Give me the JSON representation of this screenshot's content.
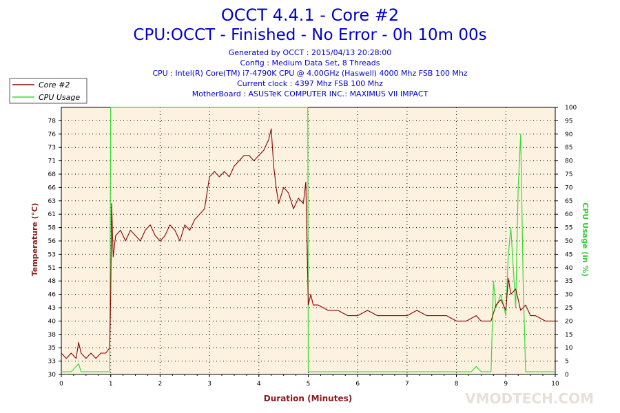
{
  "header": {
    "title": "OCCT 4.4.1 - Core #2",
    "subtitle": "CPU:OCCT - Finished - No Error - 0h 10m 00s",
    "info_lines": [
      "Generated by OCCT : 2015/04/13 20:28:00",
      "Config : Medium Data Set, 8 Threads",
      "CPU : Intel(R) Core(TM) i7-4790K CPU @ 4.00GHz (Haswell) 4000 Mhz FSB 100 Mhz",
      "Current clock : 4397 Mhz FSB 100 Mhz",
      "MotherBoard : ASUSTeK COMPUTER INC.: MAXIMUS VII IMPACT"
    ]
  },
  "watermark": "VMODTECH.COM",
  "chart_data": {
    "type": "line",
    "xlabel": "Duration (Minutes)",
    "ylabel": "Temperature (°C)",
    "y2label": "CPU Usage (in %)",
    "xlim": [
      0,
      10
    ],
    "ylim": [
      30,
      80
    ],
    "y2lim": [
      0,
      100
    ],
    "x_ticks": [
      "0",
      "1",
      "2",
      "3",
      "4",
      "5",
      "6",
      "7",
      "8",
      "9",
      "10"
    ],
    "y_ticks": [
      "30",
      "33",
      "35",
      "38",
      "40",
      "43",
      "46",
      "48",
      "51",
      "53",
      "56",
      "58",
      "61",
      "63",
      "66",
      "68",
      "71",
      "73",
      "76",
      "78"
    ],
    "y2_ticks": [
      "0",
      "5",
      "10",
      "15",
      "20",
      "25",
      "30",
      "35",
      "40",
      "45",
      "50",
      "55",
      "60",
      "65",
      "70",
      "75",
      "80",
      "85",
      "90",
      "95",
      "100"
    ],
    "grid": true,
    "legend_position": "top-left",
    "colors": {
      "temperature": "#8b0000",
      "usage": "#33dd33",
      "background": "#fdf1e0"
    },
    "series": [
      {
        "name": "Core #2",
        "axis": "left",
        "x": [
          0,
          0.1,
          0.2,
          0.3,
          0.35,
          0.4,
          0.5,
          0.6,
          0.7,
          0.8,
          0.9,
          0.98,
          1.0,
          1.02,
          1.05,
          1.1,
          1.2,
          1.3,
          1.4,
          1.5,
          1.6,
          1.7,
          1.8,
          1.9,
          2.0,
          2.1,
          2.2,
          2.3,
          2.4,
          2.5,
          2.6,
          2.7,
          2.8,
          2.9,
          3.0,
          3.1,
          3.2,
          3.3,
          3.4,
          3.5,
          3.6,
          3.7,
          3.8,
          3.9,
          4.0,
          4.1,
          4.2,
          4.25,
          4.3,
          4.35,
          4.4,
          4.5,
          4.6,
          4.7,
          4.8,
          4.9,
          4.95,
          5.0,
          5.05,
          5.1,
          5.2,
          5.4,
          5.6,
          5.8,
          6.0,
          6.2,
          6.4,
          6.6,
          6.8,
          7.0,
          7.2,
          7.4,
          7.6,
          7.8,
          8.0,
          8.2,
          8.4,
          8.5,
          8.6,
          8.7,
          8.8,
          8.9,
          9.0,
          9.05,
          9.1,
          9.2,
          9.3,
          9.4,
          9.5,
          9.6,
          9.8,
          10.0
        ],
        "y": [
          34,
          33,
          34,
          33,
          36,
          34,
          33,
          34,
          33,
          34,
          34,
          35,
          45,
          62,
          52,
          56,
          57,
          55,
          57,
          56,
          55,
          57,
          58,
          56,
          55,
          56,
          58,
          57,
          55,
          58,
          57,
          59,
          60,
          61,
          67,
          68,
          67,
          68,
          67,
          69,
          70,
          71,
          71,
          70,
          71,
          72,
          74,
          76,
          69,
          65,
          62,
          65,
          64,
          61,
          63,
          62,
          66,
          43,
          45,
          43,
          43,
          42,
          42,
          41,
          41,
          42,
          41,
          41,
          41,
          41,
          42,
          41,
          41,
          41,
          40,
          40,
          41,
          40,
          40,
          40,
          43,
          44,
          42,
          48,
          45,
          46,
          42,
          43,
          41,
          41,
          40,
          40
        ]
      },
      {
        "name": "CPU Usage",
        "axis": "right",
        "x": [
          0,
          0.2,
          0.3,
          0.35,
          0.4,
          0.6,
          0.98,
          1.0,
          1.01,
          2,
          3,
          4,
          4.99,
          5.0,
          5.02,
          6,
          7,
          8,
          8.3,
          8.4,
          8.5,
          8.7,
          8.75,
          8.8,
          8.9,
          9.0,
          9.05,
          9.1,
          9.2,
          9.25,
          9.3,
          9.35,
          9.4,
          9.45,
          9.5,
          10.0
        ],
        "y": [
          1,
          1,
          3,
          4,
          1,
          1,
          1,
          100,
          100,
          100,
          100,
          100,
          100,
          1,
          1,
          1,
          1,
          1,
          1,
          3,
          1,
          1,
          35,
          25,
          30,
          22,
          45,
          55,
          25,
          70,
          90,
          35,
          1,
          1,
          1,
          1
        ]
      }
    ]
  }
}
